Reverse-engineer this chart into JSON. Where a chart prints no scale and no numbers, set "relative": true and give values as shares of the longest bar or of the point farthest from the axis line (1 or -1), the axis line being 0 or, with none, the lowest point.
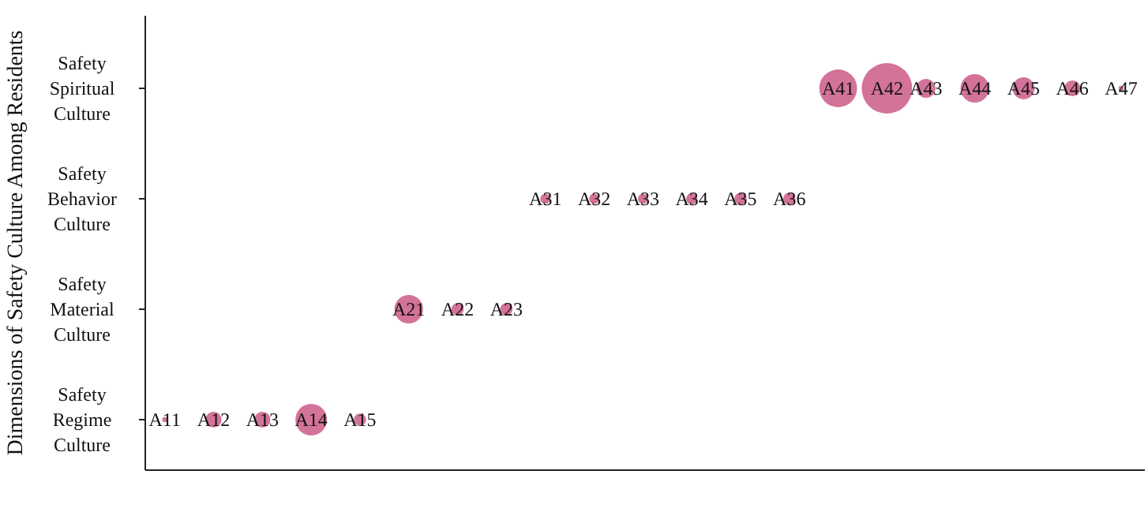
{
  "chart_data": {
    "type": "bubble",
    "orientation": "horizontal",
    "relative": true,
    "ylabel": "Dimensions of Safety Culture Among Residents",
    "categories": [
      "Safety Spiritual Culture",
      "Safety Behavior Culture",
      "Safety Material Culture",
      "Safety Regime Culture"
    ],
    "series": [
      {
        "color": "#c8507f",
        "values": [
          0.71,
          0.41,
          0.27,
          0.02
        ],
        "sizes": [
          0.56,
          0.04,
          0.32,
          0.01
        ]
      },
      {
        "color": "#c8507f",
        "values": [
          0.76,
          0.46,
          0.32,
          0.07
        ],
        "sizes": [
          1,
          0.04,
          0.06,
          0.1
        ]
      },
      {
        "color": "#c8507f",
        "values": [
          0.8,
          0.51,
          0.37,
          0.12
        ],
        "sizes": [
          0.14,
          0.04,
          0.06,
          0.1
        ]
      },
      {
        "color": "#c8507f",
        "values": [
          0.85,
          0.56,
          null,
          0.17
        ],
        "sizes": [
          0.32,
          0.05,
          null,
          0.39
        ]
      },
      {
        "color": "#c8507f",
        "values": [
          0.9,
          0.61,
          null,
          0.22
        ],
        "sizes": [
          0.19,
          0.06,
          null,
          0.06
        ]
      },
      {
        "color": "#c8507f",
        "values": [
          0.95,
          0.66,
          null,
          null
        ],
        "sizes": [
          0.1,
          0.06,
          null,
          null
        ]
      },
      {
        "color": "#c8507f",
        "values": [
          1,
          null,
          null,
          null
        ],
        "sizes": [
          0.01,
          null,
          null,
          null
        ]
      }
    ],
    "annotations": [
      {
        "text": "A11",
        "x": 0.02,
        "y": "Safety Regime Culture"
      },
      {
        "text": "A12",
        "x": 0.07,
        "y": "Safety Regime Culture"
      },
      {
        "text": "A13",
        "x": 0.12,
        "y": "Safety Regime Culture"
      },
      {
        "text": "A14",
        "x": 0.17,
        "y": "Safety Regime Culture"
      },
      {
        "text": "A15",
        "x": 0.22,
        "y": "Safety Regime Culture"
      },
      {
        "text": "A21",
        "x": 0.27,
        "y": "Safety Material Culture"
      },
      {
        "text": "A22",
        "x": 0.32,
        "y": "Safety Material Culture"
      },
      {
        "text": "A23",
        "x": 0.37,
        "y": "Safety Material Culture"
      },
      {
        "text": "A31",
        "x": 0.41,
        "y": "Safety Behavior Culture"
      },
      {
        "text": "A32",
        "x": 0.46,
        "y": "Safety Behavior Culture"
      },
      {
        "text": "A33",
        "x": 0.51,
        "y": "Safety Behavior Culture"
      },
      {
        "text": "A34",
        "x": 0.56,
        "y": "Safety Behavior Culture"
      },
      {
        "text": "A35",
        "x": 0.61,
        "y": "Safety Behavior Culture"
      },
      {
        "text": "A36",
        "x": 0.66,
        "y": "Safety Behavior Culture"
      },
      {
        "text": "A41",
        "x": 0.71,
        "y": "Safety Spiritual Culture"
      },
      {
        "text": "A42",
        "x": 0.76,
        "y": "Safety Spiritual Culture"
      },
      {
        "text": "A43",
        "x": 0.8,
        "y": "Safety Spiritual Culture"
      },
      {
        "text": "A44",
        "x": 0.85,
        "y": "Safety Spiritual Culture"
      },
      {
        "text": "A45",
        "x": 0.9,
        "y": "Safety Spiritual Culture"
      },
      {
        "text": "A46",
        "x": 0.95,
        "y": "Safety Spiritual Culture"
      },
      {
        "text": "A47",
        "x": 1,
        "y": "Safety Spiritual Culture"
      }
    ]
  }
}
